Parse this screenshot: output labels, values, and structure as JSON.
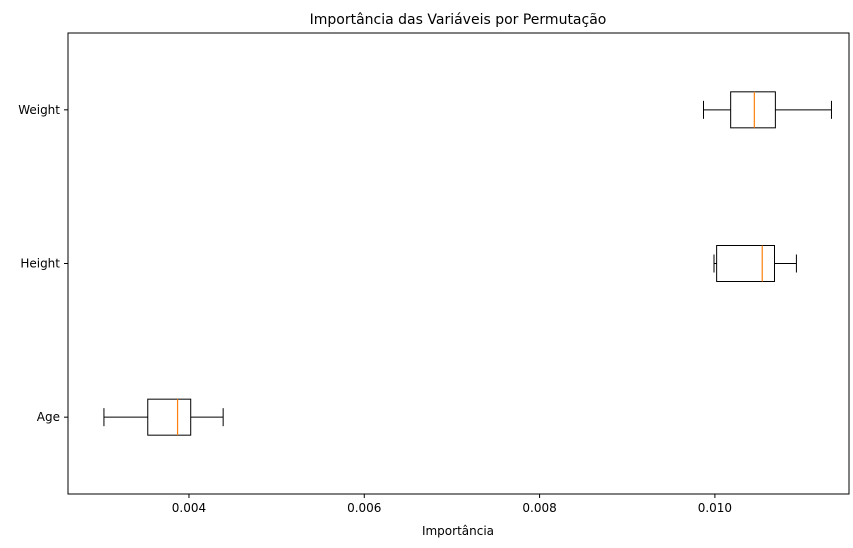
{
  "chart_data": {
    "type": "boxplot",
    "orientation": "horizontal",
    "title": "Importância das Variáveis por Permutação",
    "xlabel": "Importância",
    "ylabel": "",
    "xlim": [
      0.00262,
      0.01153
    ],
    "xticks": [
      0.004,
      0.006,
      0.008,
      0.01
    ],
    "xtick_labels": [
      "0.004",
      "0.006",
      "0.008",
      "0.010"
    ],
    "grid": false,
    "categories": [
      "Age",
      "Height",
      "Weight"
    ],
    "boxes": [
      {
        "category": "Age",
        "whisker_low": 0.00303,
        "q1": 0.00353,
        "median": 0.00387,
        "q3": 0.00402,
        "whisker_high": 0.00439
      },
      {
        "category": "Height",
        "whisker_low": 0.00999,
        "q1": 0.01002,
        "median": 0.01054,
        "q3": 0.01068,
        "whisker_high": 0.01093
      },
      {
        "category": "Weight",
        "whisker_low": 0.00987,
        "q1": 0.01018,
        "median": 0.01045,
        "q3": 0.01069,
        "whisker_high": 0.01133
      }
    ],
    "colors": {
      "box": "#000000",
      "median": "#ff7f0e",
      "axes": "#000000"
    }
  }
}
